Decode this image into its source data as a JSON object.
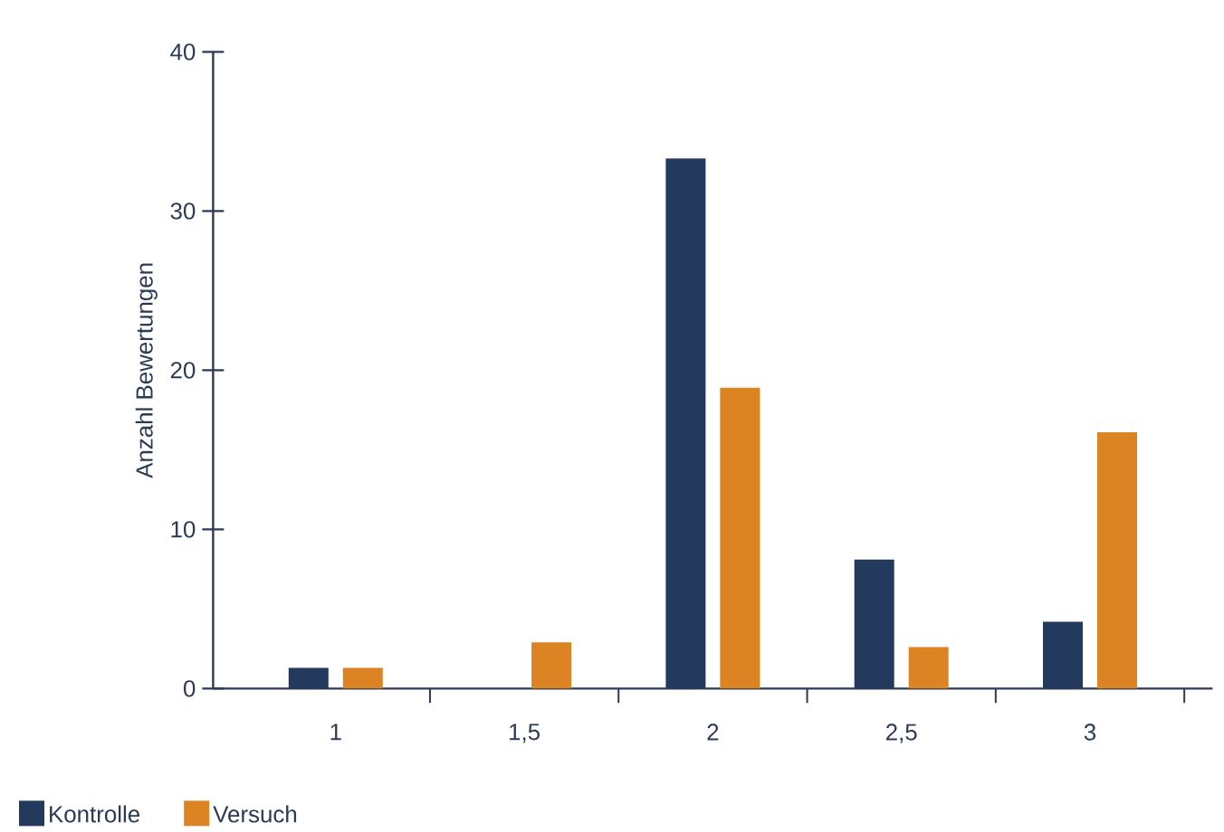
{
  "chart_data": {
    "type": "bar",
    "ylabel": "Anzahl Bewertungen",
    "categories": [
      "1",
      "1,5",
      "2",
      "2,5",
      "3"
    ],
    "series": [
      {
        "name": "Kontrolle",
        "color": "#233a5e",
        "values": [
          1.3,
          null,
          33.3,
          8.1,
          4.2
        ]
      },
      {
        "name": "Versuch",
        "color": "#dc8424",
        "values": [
          1.3,
          2.9,
          18.9,
          2.6,
          16.1
        ]
      }
    ],
    "ylim": [
      0,
      40
    ],
    "yticks": [
      0,
      10,
      20,
      30,
      40
    ],
    "grid": false,
    "legend": "bottom left"
  }
}
